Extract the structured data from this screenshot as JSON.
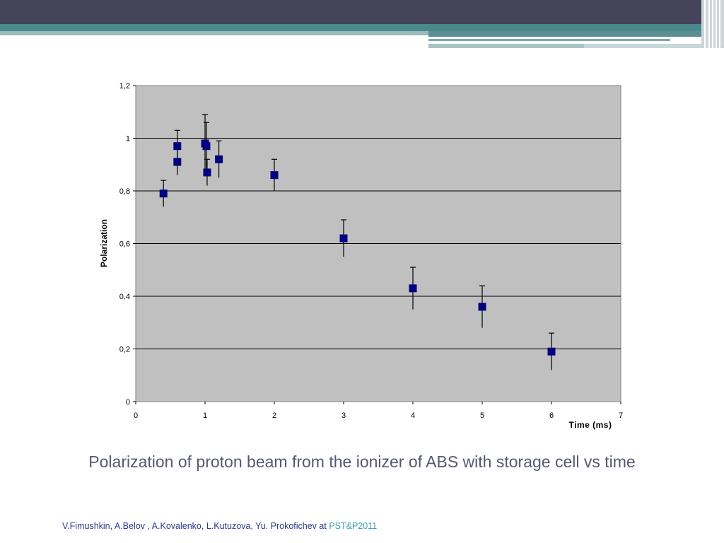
{
  "caption": "Polarization of proton beam from the ionizer of ABS with storage cell vs time",
  "footer": {
    "authors": "V.Fimushkin, A.Belov , A.Kovalenko, L.Kutuzova, Yu. Prokofichev at ",
    "conference": "PST&P2011"
  },
  "colors": {
    "marker": "#000080",
    "plot_bg": "#c0c0c0",
    "header_dark": "#454459",
    "header_teal": "#4a8a8c",
    "caption_text": "#555a70",
    "footer_text": "#2b3a8a",
    "footer_accent": "#3aa0b8"
  },
  "chart_data": {
    "type": "scatter",
    "title": "",
    "xlabel": "Time (ms)",
    "ylabel": "Polarization",
    "xlim": [
      0,
      7
    ],
    "ylim": [
      0,
      1.2
    ],
    "x_ticks": [
      "0",
      "1",
      "2",
      "3",
      "4",
      "5",
      "6",
      "7"
    ],
    "y_ticks": [
      "0",
      "0,2",
      "0,4",
      "0,6",
      "0,8",
      "1",
      "1,2"
    ],
    "grid": "horizontal",
    "legend": "none",
    "points": [
      {
        "x": 0.4,
        "y": 0.79,
        "err": 0.05
      },
      {
        "x": 0.6,
        "y": 0.97,
        "err": 0.06
      },
      {
        "x": 0.6,
        "y": 0.91,
        "err": 0.05
      },
      {
        "x": 1.0,
        "y": 0.98,
        "err": 0.11
      },
      {
        "x": 1.02,
        "y": 0.97,
        "err": 0.09
      },
      {
        "x": 1.03,
        "y": 0.87,
        "err": 0.05
      },
      {
        "x": 1.2,
        "y": 0.92,
        "err": 0.07
      },
      {
        "x": 2.0,
        "y": 0.86,
        "err": 0.06
      },
      {
        "x": 3.0,
        "y": 0.62,
        "err": 0.07
      },
      {
        "x": 4.0,
        "y": 0.43,
        "err": 0.08
      },
      {
        "x": 5.0,
        "y": 0.36,
        "err": 0.08
      },
      {
        "x": 6.0,
        "y": 0.19,
        "err": 0.07
      }
    ]
  }
}
